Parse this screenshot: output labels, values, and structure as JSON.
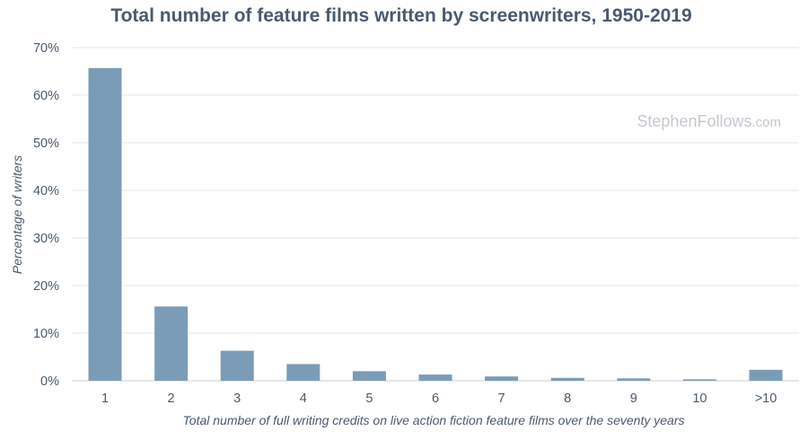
{
  "chart_data": {
    "type": "bar",
    "title": "Total number of feature films written by screenwriters, 1950-2019",
    "xlabel": "Total number of full writing credits on live action fiction feature films over the seventy years",
    "ylabel": "Percentage of writers",
    "categories": [
      "1",
      "2",
      "3",
      "4",
      "5",
      "6",
      "7",
      "8",
      "9",
      "10",
      ">10"
    ],
    "values": [
      65.7,
      15.6,
      6.3,
      3.5,
      2.0,
      1.3,
      0.9,
      0.6,
      0.5,
      0.3,
      2.3
    ],
    "ylim": [
      0,
      70
    ],
    "yticks": [
      0,
      10,
      20,
      30,
      40,
      50,
      60,
      70
    ],
    "ytick_labels": [
      "0%",
      "10%",
      "20%",
      "30%",
      "40%",
      "50%",
      "60%",
      "70%"
    ],
    "grid": true,
    "legend": "none",
    "bar_color": "#7b9cb7"
  },
  "watermark": {
    "main": "StephenFollows",
    "tld": ".com"
  }
}
